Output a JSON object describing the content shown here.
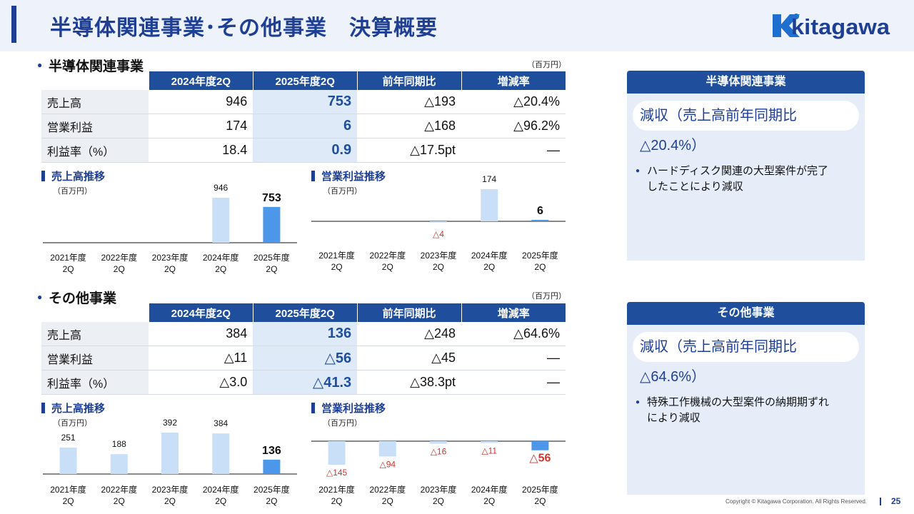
{
  "page": {
    "title": "半導体関連事業･その他事業　決算概要",
    "logo_text": "kitagawa",
    "copyright": "Copyright © Kitagawa Corporation. All Rights Reserved.",
    "page_number": "25",
    "colors": {
      "navy": "#1f3f95",
      "header_blue": "#1f4e9d",
      "bar_light": "#c9dff8",
      "bar_dark": "#4c97ea",
      "negative_red": "#d0342c"
    }
  },
  "sections": [
    {
      "name": "半導体関連事業",
      "unit": "（百万円）",
      "table": {
        "headers": [
          "2024年度2Q",
          "2025年度2Q",
          "前年同期比",
          "増減率"
        ],
        "rows": [
          {
            "label": "売上高",
            "v2024": "946",
            "v2025": "753",
            "yoy": "△193",
            "rate": "△20.4%"
          },
          {
            "label": "営業利益",
            "v2024": "174",
            "v2025": "6",
            "yoy": "△168",
            "rate": "△96.2%"
          },
          {
            "label": "利益率（%）",
            "v2024": "18.4",
            "v2025": "0.9",
            "yoy": "△17.5pt",
            "rate": "―"
          }
        ]
      },
      "summary": {
        "head": "半導体関連事業",
        "pill": "減収（売上高前年同期比△20.4%）",
        "bullet_l1": "ハードディスク関連の大型案件が完了",
        "bullet_l2": "したことにより減収"
      }
    },
    {
      "name": "その他事業",
      "unit": "（百万円）",
      "table": {
        "headers": [
          "2024年度2Q",
          "2025年度2Q",
          "前年同期比",
          "増減率"
        ],
        "rows": [
          {
            "label": "売上高",
            "v2024": "384",
            "v2025": "136",
            "yoy": "△248",
            "rate": "△64.6%"
          },
          {
            "label": "営業利益",
            "v2024": "△11",
            "v2025": "△56",
            "yoy": "△45",
            "rate": "―"
          },
          {
            "label": "利益率（%）",
            "v2024": "△3.0",
            "v2025": "△41.3",
            "yoy": "△38.3pt",
            "rate": "―"
          }
        ]
      },
      "summary": {
        "head": "その他事業",
        "pill": "減収（売上高前年同期比△64.6%）",
        "bullet_l1": "特殊工作機械の大型案件の納期期ずれ",
        "bullet_l2": "により減収"
      }
    }
  ],
  "chart_data": [
    {
      "id": "semi-sales",
      "type": "bar",
      "title": "売上高推移",
      "unit": "（百万円）",
      "categories": [
        "2021年度\n2Q",
        "2022年度\n2Q",
        "2023年度\n2Q",
        "2024年度\n2Q",
        "2025年度\n2Q"
      ],
      "values": [
        null,
        null,
        null,
        946,
        753
      ],
      "labels": [
        "",
        "",
        "",
        "946",
        "753"
      ],
      "scale_max": 946
    },
    {
      "id": "semi-op",
      "type": "bar",
      "title": "営業利益推移",
      "unit": "（百万円）",
      "categories": [
        "2021年度\n2Q",
        "2022年度\n2Q",
        "2023年度\n2Q",
        "2024年度\n2Q",
        "2025年度\n2Q"
      ],
      "values": [
        null,
        null,
        -4,
        174,
        6
      ],
      "labels": [
        "",
        "",
        "△4",
        "174",
        "6"
      ],
      "scale_max": 174
    },
    {
      "id": "other-sales",
      "type": "bar",
      "title": "売上高推移",
      "unit": "（百万円）",
      "categories": [
        "2021年度\n2Q",
        "2022年度\n2Q",
        "2023年度\n2Q",
        "2024年度\n2Q",
        "2025年度\n2Q"
      ],
      "values": [
        251,
        188,
        392,
        384,
        136
      ],
      "labels": [
        "251",
        "188",
        "392",
        "384",
        "136"
      ],
      "scale_max": 392
    },
    {
      "id": "other-op",
      "type": "bar",
      "title": "営業利益推移",
      "unit": "（百万円）",
      "categories": [
        "2021年度\n2Q",
        "2022年度\n2Q",
        "2023年度\n2Q",
        "2024年度\n2Q",
        "2025年度\n2Q"
      ],
      "values": [
        -145,
        -94,
        -16,
        -11,
        -56
      ],
      "labels": [
        "△145",
        "△94",
        "△16",
        "△11",
        "△56"
      ],
      "scale_max": 145
    }
  ]
}
